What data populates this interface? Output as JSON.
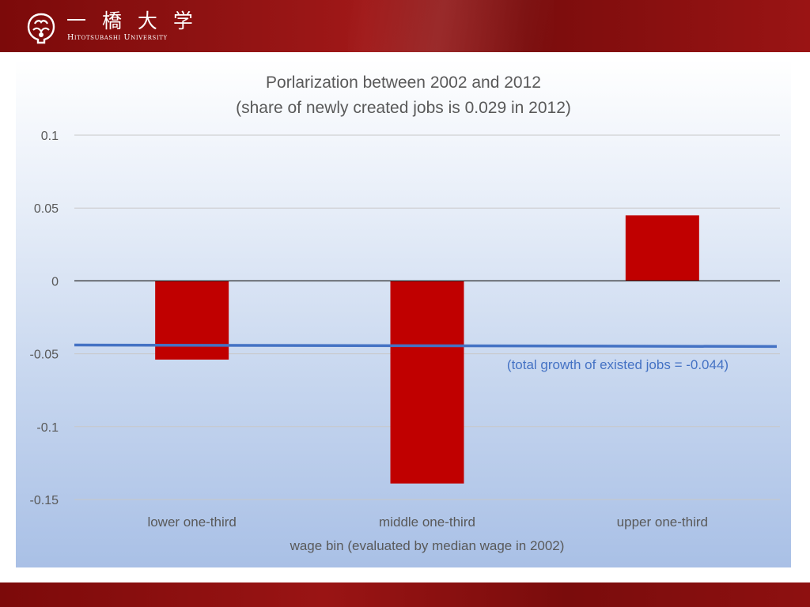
{
  "header": {
    "logo_jp": "一 橋 大 学",
    "logo_en": "Hitotsubashi University",
    "colors": {
      "band": "#8e1212",
      "text": "#ffffff"
    },
    "logo_icon": "hitotsubashi-emblem-icon"
  },
  "chart_data": {
    "type": "bar",
    "title_line1": "Porlarization between 2002 and 2012",
    "title_line2": "(share of newly created jobs is 0.029 in 2012)",
    "categories": [
      "lower one-third",
      "middle one-third",
      "upper one-third"
    ],
    "values": [
      -0.054,
      -0.139,
      0.045
    ],
    "bar_color": "#c00000",
    "xlabel": "wage bin (evaluated by median wage in 2002)",
    "ylabel": "",
    "ylim": [
      -0.15,
      0.1
    ],
    "yticks": [
      0.1,
      0.05,
      0,
      -0.05,
      -0.1,
      -0.15
    ],
    "ytick_labels": [
      "0.1",
      "0.05",
      "0",
      "-0.05",
      "-0.1",
      "-0.15"
    ],
    "grid": true,
    "reference_line": {
      "y_start": -0.044,
      "y_end": -0.045,
      "color": "#4472c4"
    },
    "annotation": "(total growth of existed jobs = -0.044)"
  }
}
